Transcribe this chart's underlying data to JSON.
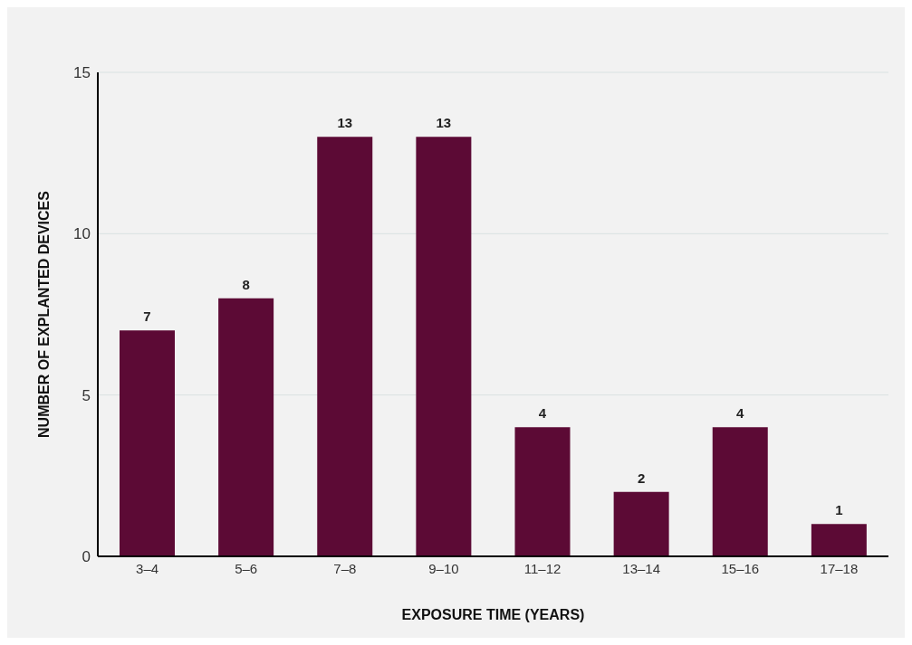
{
  "chart_data": {
    "type": "bar",
    "xlabel": "EXPOSURE TIME (YEARS)",
    "ylabel": "NUMBER OF EXPLANTED DEVICES",
    "categories": [
      "3–4",
      "5–6",
      "7–8",
      "9–10",
      "11–12",
      "13–14",
      "15–16",
      "17–18"
    ],
    "values": [
      7,
      8,
      13,
      13,
      4,
      2,
      4,
      1
    ],
    "color": "#5c0a35",
    "ylim": [
      0,
      15
    ],
    "yticks": [
      0,
      5,
      10,
      15
    ],
    "grid": "y",
    "data_labels": true
  }
}
